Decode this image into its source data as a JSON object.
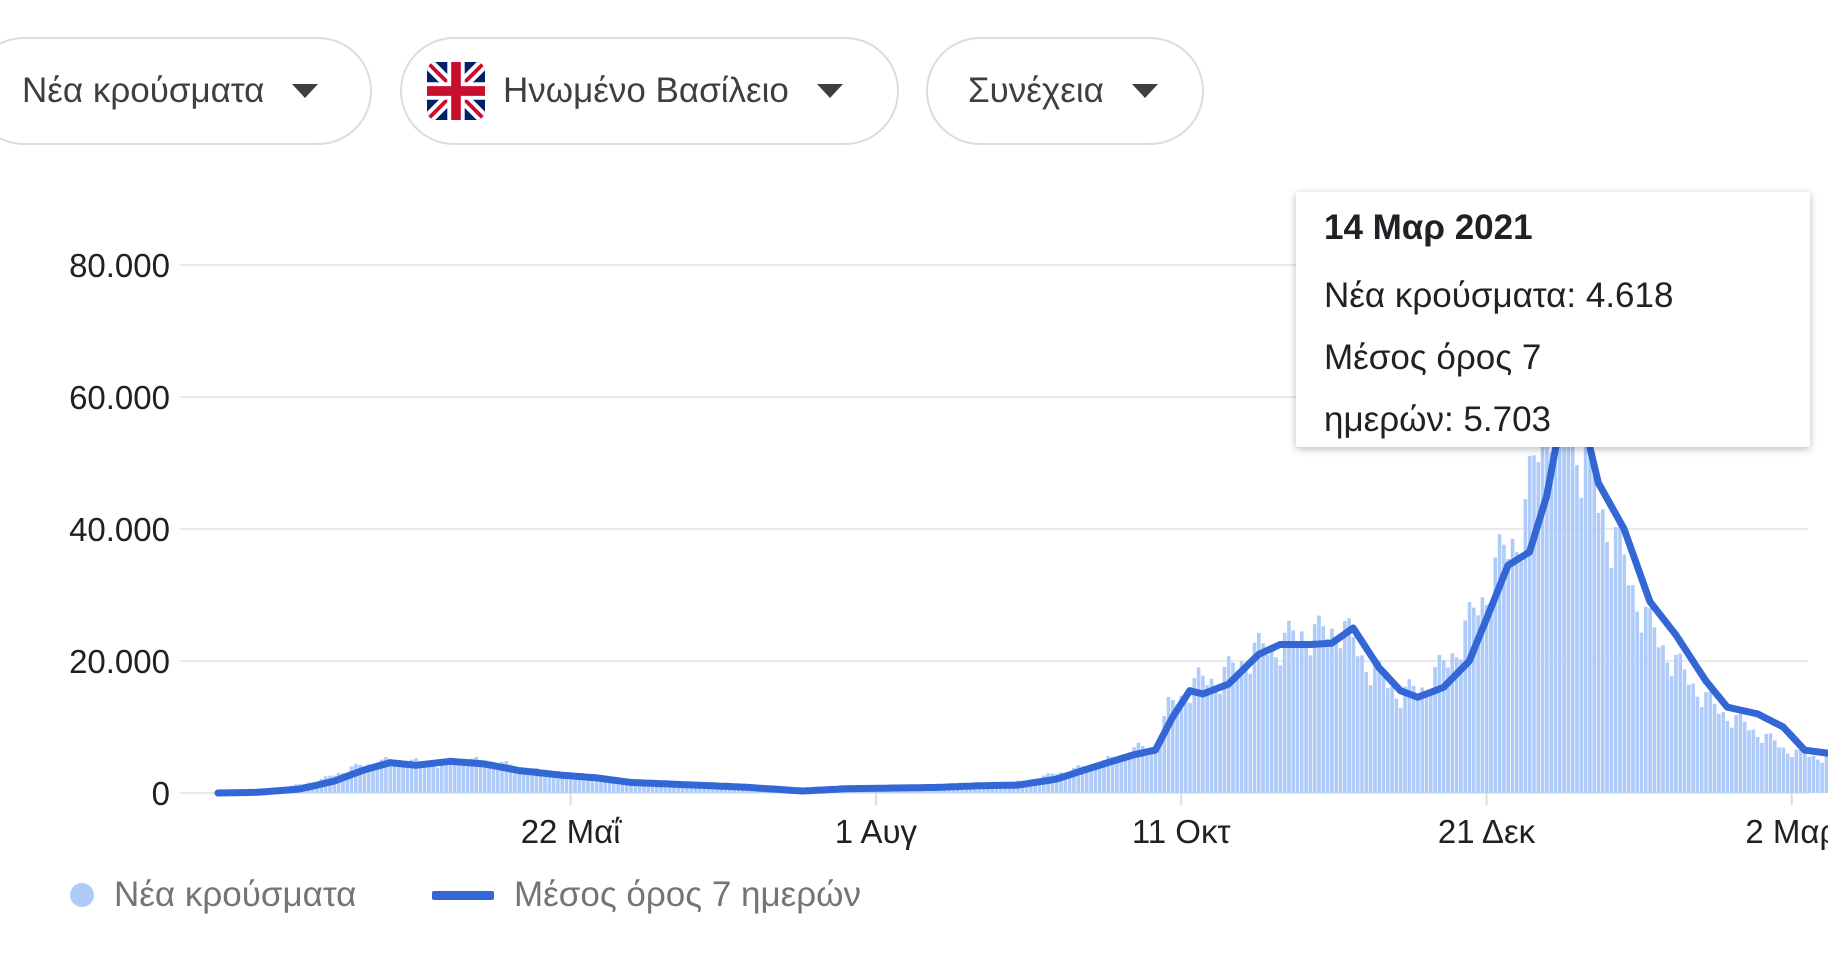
{
  "controls": {
    "metric": {
      "label": "Νέα κρούσματα",
      "icon": "caret-down-icon"
    },
    "country": {
      "label": "Ηνωμένο Βασίλειο",
      "flag": "uk-flag-icon",
      "icon": "caret-down-icon"
    },
    "more": {
      "label": "Συνέχεια",
      "icon": "caret-down-icon"
    }
  },
  "colors": {
    "bars": "#aecbfa",
    "average_line": "#3367d6",
    "grid": "#e8eaed",
    "axis_text": "#202124"
  },
  "tooltip": {
    "date": "14 Μαρ 2021",
    "line1": "Νέα κρούσματα: 4.618",
    "line2": "Μέσος όρος 7",
    "line3": "ημερών: 5.703"
  },
  "legend": {
    "bars": "Νέα κρούσματα",
    "average": "Μέσος όρος 7 ημερών"
  },
  "chart_data": {
    "type": "area",
    "x_axis": {
      "range": [
        "2020-03-01",
        "2021-03-14"
      ],
      "ticks": [
        {
          "date": "2020-05-22",
          "label": "22 Μαΐ"
        },
        {
          "date": "2020-08-01",
          "label": "1 Αυγ"
        },
        {
          "date": "2020-10-11",
          "label": "11 Οκτ"
        },
        {
          "date": "2020-12-21",
          "label": "21 Δεκ"
        },
        {
          "date": "2021-03-02",
          "label": "2 Μαρ"
        }
      ]
    },
    "y_axis": {
      "ylim": [
        0,
        80000
      ],
      "ticks": [
        {
          "value": 0,
          "label": "0"
        },
        {
          "value": 20000,
          "label": "20.000"
        },
        {
          "value": 40000,
          "label": "40.000"
        },
        {
          "value": 60000,
          "label": "60.000"
        },
        {
          "value": 80000,
          "label": "80.000"
        }
      ]
    },
    "grid": true,
    "legend_position": "bottom-left",
    "series": [
      {
        "name": "Νέα κρούσματα",
        "kind": "daily-bars",
        "values_by_date": [
          [
            "2020-03-01",
            0
          ],
          [
            "2020-03-15",
            600
          ],
          [
            "2020-03-25",
            2000
          ],
          [
            "2020-04-01",
            3800
          ],
          [
            "2020-04-08",
            4800
          ],
          [
            "2020-04-12",
            5000
          ],
          [
            "2020-04-20",
            4400
          ],
          [
            "2020-04-28",
            5000
          ],
          [
            "2020-05-05",
            4600
          ],
          [
            "2020-05-12",
            3600
          ],
          [
            "2020-05-22",
            2600
          ],
          [
            "2020-06-01",
            1600
          ],
          [
            "2020-06-15",
            1200
          ],
          [
            "2020-07-01",
            800
          ],
          [
            "2020-07-10",
            300
          ],
          [
            "2020-07-20",
            700
          ],
          [
            "2020-08-01",
            800
          ],
          [
            "2020-08-15",
            1000
          ],
          [
            "2020-08-25",
            1200
          ],
          [
            "2020-09-05",
            1800
          ],
          [
            "2020-09-12",
            3000
          ],
          [
            "2020-09-22",
            4500
          ],
          [
            "2020-10-01",
            6800
          ],
          [
            "2020-10-05",
            7000
          ],
          [
            "2020-10-08",
            13000
          ],
          [
            "2020-10-15",
            17000
          ],
          [
            "2020-10-20",
            17500
          ],
          [
            "2020-10-28",
            21500
          ],
          [
            "2020-11-03",
            22500
          ],
          [
            "2020-11-08",
            24500
          ],
          [
            "2020-11-12",
            24000
          ],
          [
            "2020-11-17",
            25500
          ],
          [
            "2020-11-24",
            19000
          ],
          [
            "2020-12-01",
            15000
          ],
          [
            "2020-12-06",
            16000
          ],
          [
            "2020-12-12",
            20000
          ],
          [
            "2020-12-18",
            27000
          ],
          [
            "2020-12-24",
            35000
          ],
          [
            "2020-12-30",
            42000
          ],
          [
            "2021-01-04",
            60000
          ],
          [
            "2021-01-08",
            60000
          ],
          [
            "2021-01-14",
            48000
          ],
          [
            "2021-01-20",
            38000
          ],
          [
            "2021-01-28",
            25000
          ],
          [
            "2021-02-05",
            18000
          ],
          [
            "2021-02-12",
            13000
          ],
          [
            "2021-02-20",
            10000
          ],
          [
            "2021-03-01",
            6500
          ],
          [
            "2021-03-08",
            5500
          ],
          [
            "2021-03-14",
            4618
          ]
        ]
      },
      {
        "name": "Μέσος όρος 7 ημερών",
        "kind": "line",
        "values_by_date": [
          [
            "2020-03-01",
            0
          ],
          [
            "2020-03-10",
            100
          ],
          [
            "2020-03-20",
            600
          ],
          [
            "2020-03-28",
            1800
          ],
          [
            "2020-04-04",
            3500
          ],
          [
            "2020-04-10",
            4600
          ],
          [
            "2020-04-16",
            4200
          ],
          [
            "2020-04-24",
            4800
          ],
          [
            "2020-05-02",
            4400
          ],
          [
            "2020-05-10",
            3400
          ],
          [
            "2020-05-20",
            2700
          ],
          [
            "2020-05-28",
            2300
          ],
          [
            "2020-06-05",
            1600
          ],
          [
            "2020-06-20",
            1200
          ],
          [
            "2020-07-01",
            900
          ],
          [
            "2020-07-15",
            300
          ],
          [
            "2020-07-25",
            650
          ],
          [
            "2020-08-05",
            750
          ],
          [
            "2020-08-15",
            850
          ],
          [
            "2020-08-25",
            1100
          ],
          [
            "2020-09-03",
            1200
          ],
          [
            "2020-09-12",
            2100
          ],
          [
            "2020-09-20",
            3800
          ],
          [
            "2020-09-30",
            5800
          ],
          [
            "2020-10-05",
            6500
          ],
          [
            "2020-10-09",
            11500
          ],
          [
            "2020-10-13",
            15500
          ],
          [
            "2020-10-16",
            15000
          ],
          [
            "2020-10-22",
            16500
          ],
          [
            "2020-10-29",
            21000
          ],
          [
            "2020-11-03",
            22500
          ],
          [
            "2020-11-10",
            22500
          ],
          [
            "2020-11-15",
            22700
          ],
          [
            "2020-11-20",
            25000
          ],
          [
            "2020-11-26",
            19000
          ],
          [
            "2020-12-01",
            15500
          ],
          [
            "2020-12-05",
            14500
          ],
          [
            "2020-12-11",
            16000
          ],
          [
            "2020-12-17",
            20000
          ],
          [
            "2020-12-22",
            28000
          ],
          [
            "2020-12-26",
            34500
          ],
          [
            "2020-12-31",
            36500
          ],
          [
            "2021-01-04",
            45000
          ],
          [
            "2021-01-08",
            59000
          ],
          [
            "2021-01-12",
            58000
          ],
          [
            "2021-01-16",
            47000
          ],
          [
            "2021-01-22",
            40000
          ],
          [
            "2021-01-28",
            29000
          ],
          [
            "2021-02-03",
            24000
          ],
          [
            "2021-02-10",
            17000
          ],
          [
            "2021-02-15",
            13000
          ],
          [
            "2021-02-22",
            12000
          ],
          [
            "2021-02-28",
            10000
          ],
          [
            "2021-03-05",
            6500
          ],
          [
            "2021-03-14",
            5703
          ]
        ]
      }
    ],
    "highlight": {
      "date": "2021-03-14",
      "value": 5703
    }
  }
}
